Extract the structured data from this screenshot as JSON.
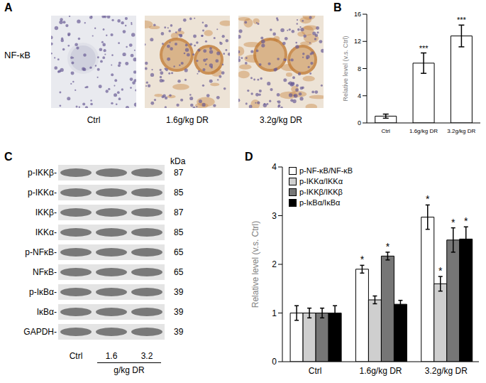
{
  "panels": {
    "A": {
      "label": "A",
      "row_label": "NF-κB",
      "images": [
        "Ctrl",
        "1.6g/kg DR",
        "3.2g/kg DR"
      ]
    },
    "C": {
      "label": "C",
      "unit_header": "kDa",
      "rows": [
        {
          "label": "p-IKKβ-",
          "kda": 87
        },
        {
          "label": "p-IKKα-",
          "kda": 85
        },
        {
          "label": "IKKβ-",
          "kda": 87
        },
        {
          "label": "IKKα-",
          "kda": 85
        },
        {
          "label": "p-NFκB-",
          "kda": 65
        },
        {
          "label": "NFκB-",
          "kda": 65
        },
        {
          "label": "p-IκBα-",
          "kda": 39
        },
        {
          "label": "IκBα-",
          "kda": 39
        },
        {
          "label": "GAPDH-",
          "kda": 39
        }
      ],
      "lanes": [
        "Ctrl",
        "1.6",
        "3.2"
      ],
      "lane_group": "g/kg DR"
    }
  },
  "chart_data": [
    {
      "panel_label": "B",
      "type": "bar",
      "categories": [
        "Ctrl",
        "1.6g/kg DR",
        "3.2g/kg DR"
      ],
      "values": [
        1,
        8.8,
        12.8
      ],
      "errors": [
        0.3,
        1.5,
        1.6
      ],
      "annotations": [
        null,
        "***",
        "***"
      ],
      "color": "#ffffff",
      "y_label": "Relative level (v.s. Ctrl)",
      "ylim": [
        0,
        16
      ],
      "yticks": [
        0,
        4,
        8,
        12,
        16
      ],
      "grid": false
    },
    {
      "panel_label": "D",
      "type": "bar",
      "categories": [
        "Ctrl",
        "1.6g/kg DR",
        "3.2g/kg DR"
      ],
      "series": [
        {
          "name": "p-NF-κB/NF-κB",
          "color": "#ffffff",
          "values": [
            1,
            1.9,
            2.97
          ],
          "errors": [
            0.15,
            0.08,
            0.25
          ],
          "annotations": [
            null,
            "*",
            "*"
          ]
        },
        {
          "name": "p-IKKα/IKKα",
          "color": "#cfcfcf",
          "values": [
            1,
            1.27,
            1.6
          ],
          "errors": [
            0.1,
            0.08,
            0.15
          ],
          "annotations": [
            null,
            null,
            "*"
          ]
        },
        {
          "name": "p-IKKβ/IKKβ",
          "color": "#767676",
          "values": [
            1,
            2.17,
            2.5
          ],
          "errors": [
            0.1,
            0.08,
            0.25
          ],
          "annotations": [
            null,
            "*",
            "*"
          ]
        },
        {
          "name": "p-IκBα/IκBα",
          "color": "#000000",
          "values": [
            1,
            1.18,
            2.52
          ],
          "errors": [
            0.15,
            0.08,
            0.25
          ],
          "annotations": [
            null,
            null,
            "*"
          ]
        }
      ],
      "y_label": "Relative level (v.s. Ctrl)",
      "ylim": [
        0,
        4
      ],
      "yticks": [
        0,
        1,
        2,
        3,
        4
      ],
      "grid": false,
      "legend": "upper left"
    }
  ]
}
